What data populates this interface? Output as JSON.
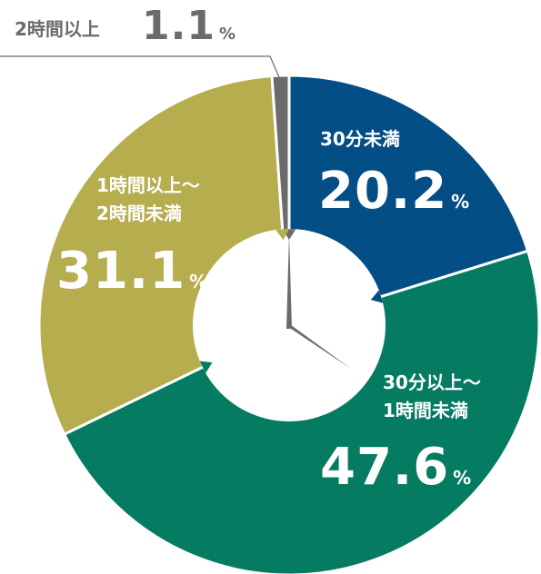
{
  "chart_data": {
    "type": "pie",
    "variant": "donut",
    "categories": [
      "30分未満",
      "30分以上～1時間未満",
      "1時間以上～2時間未満",
      "2時間以上"
    ],
    "values": [
      20.2,
      47.6,
      31.1,
      1.1
    ],
    "unit": "%",
    "value_labels": [
      "20.2",
      "47.6",
      "31.1",
      "1.1"
    ],
    "label_lines": [
      [
        "30分未満"
      ],
      [
        "30分以上～",
        "1時間未満"
      ],
      [
        "1時間以上～",
        "2時間未満"
      ],
      [
        "2時間以上"
      ]
    ],
    "colors": [
      "#034e84",
      "#057b62",
      "#b5ad4e",
      "#6b6b6b"
    ],
    "start_angle": "12 o'clock",
    "direction": "clockwise",
    "center_decoration": "clock-hands-icon"
  }
}
